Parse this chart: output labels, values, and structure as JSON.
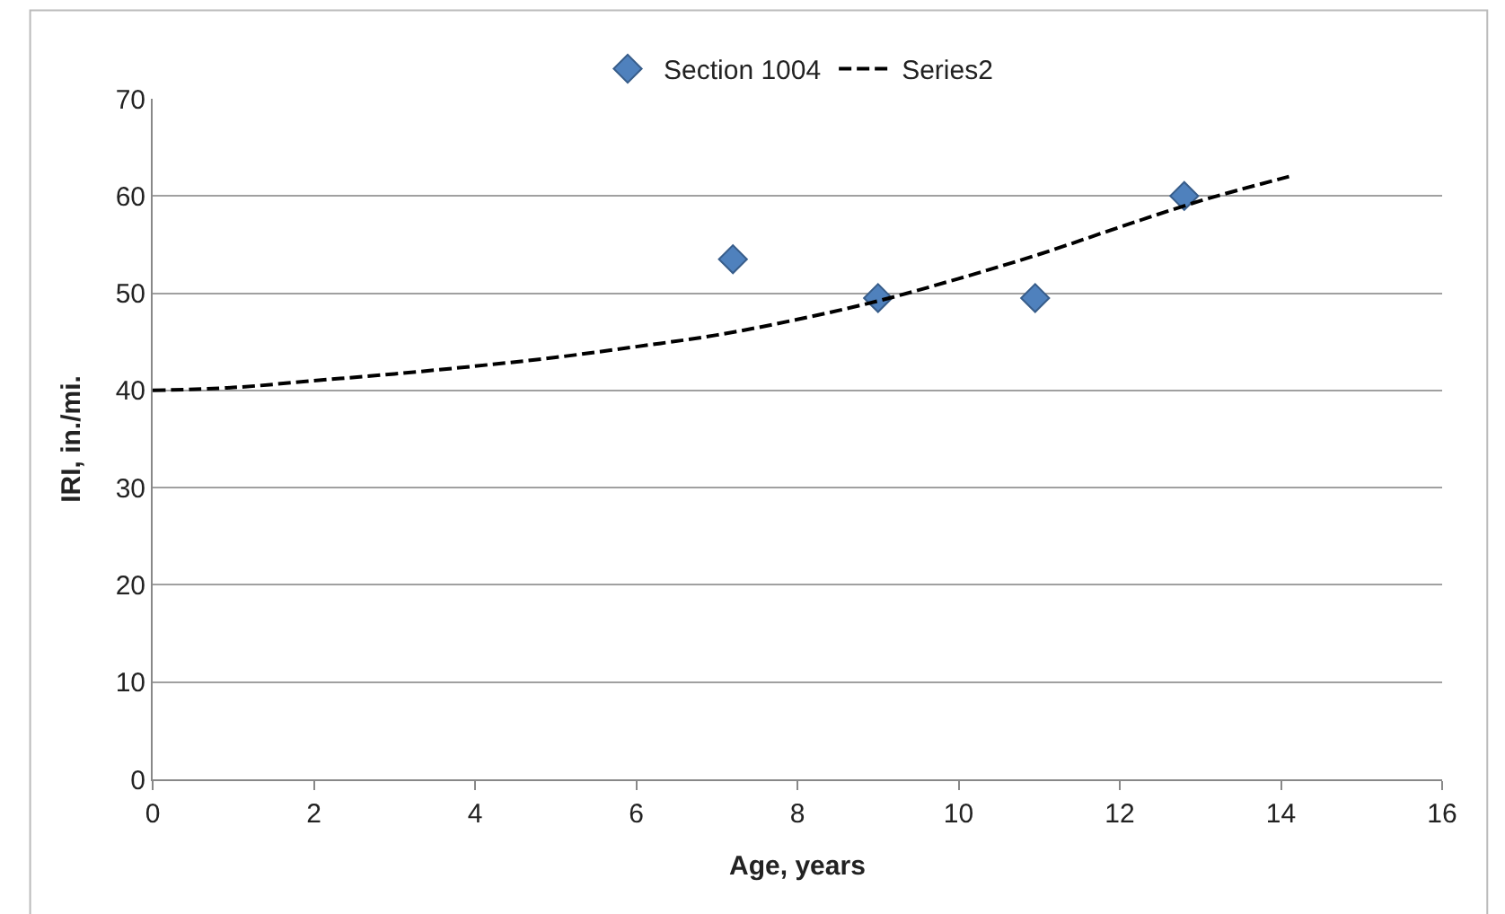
{
  "chart_data": {
    "type": "scatter",
    "xlabel": "Age, years",
    "ylabel": "IRI, in./mi.",
    "xlim": [
      0,
      16
    ],
    "xticks": [
      0,
      2,
      4,
      6,
      8,
      10,
      12,
      14,
      16
    ],
    "ylim": [
      0,
      70
    ],
    "yticks": [
      0,
      10,
      20,
      30,
      40,
      50,
      60,
      70
    ],
    "grid": "y",
    "legend": "top",
    "series": [
      {
        "name": "Section 1004",
        "marker": "diamond",
        "color": "#4f81bd",
        "x": [
          7.2,
          9.0,
          10.95,
          12.8
        ],
        "values": [
          53.5,
          49.5,
          49.5,
          60
        ]
      },
      {
        "name": "Series2",
        "type": "line",
        "marker": "none",
        "line_style": "dashed",
        "color": "#000000",
        "x": [
          0,
          1,
          2,
          3,
          4,
          5,
          6,
          7,
          8,
          9,
          10,
          11,
          12,
          13,
          14.1
        ],
        "values": [
          40,
          40.3,
          41,
          41.7,
          42.5,
          43.4,
          44.5,
          45.7,
          47.3,
          49.2,
          51.5,
          54,
          56.8,
          59.5,
          62
        ]
      }
    ]
  }
}
